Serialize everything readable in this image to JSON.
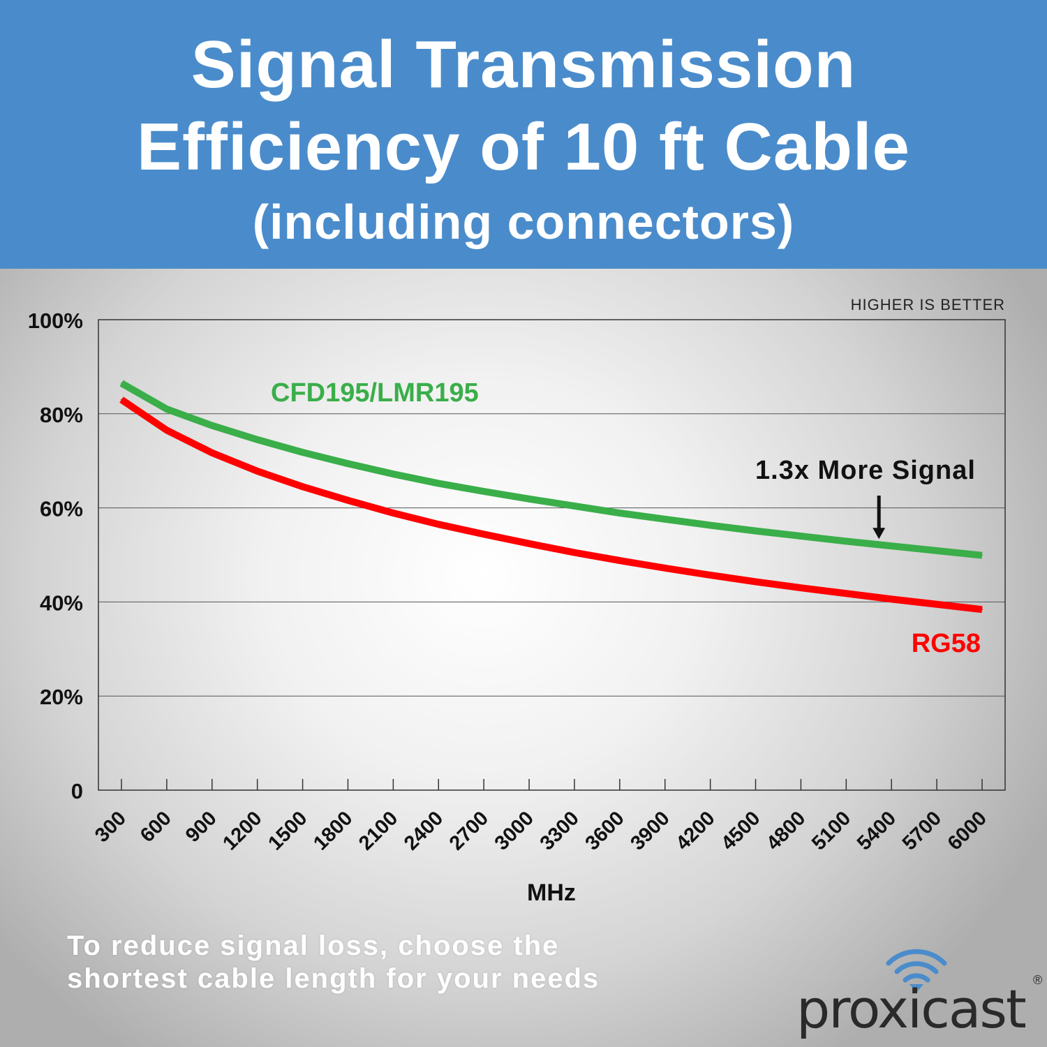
{
  "header": {
    "title_line1": "Signal Transmission",
    "title_line2": "Efficiency of 10 ft Cable",
    "title_line3": "(including connectors)"
  },
  "chart_data": {
    "type": "line",
    "title": "Signal Transmission Efficiency of 10 ft Cable (including connectors)",
    "corner_note": "HIGHER IS BETTER",
    "xlabel": "MHz",
    "ylabel": "",
    "x": [
      300,
      600,
      900,
      1200,
      1500,
      1800,
      2100,
      2400,
      2700,
      3000,
      3300,
      3600,
      3900,
      4200,
      4500,
      4800,
      5100,
      5400,
      5700,
      6000
    ],
    "y_ticks": [
      "0",
      "20%",
      "40%",
      "60%",
      "80%",
      "100%"
    ],
    "ylim": [
      0,
      100
    ],
    "grid": true,
    "series": [
      {
        "name": "CFD195/LMR195",
        "color": "#3aae49",
        "values": [
          86.5,
          81,
          77.5,
          74.5,
          71.8,
          69.4,
          67.2,
          65.2,
          63.5,
          61.9,
          60.4,
          58.9,
          57.6,
          56.3,
          55.1,
          54.0,
          52.9,
          51.9,
          50.9,
          49.9
        ]
      },
      {
        "name": "RG58",
        "color": "#ff0000",
        "values": [
          83,
          76.5,
          71.7,
          67.8,
          64.5,
          61.6,
          58.9,
          56.5,
          54.4,
          52.4,
          50.5,
          48.8,
          47.2,
          45.7,
          44.3,
          43.0,
          41.8,
          40.6,
          39.5,
          38.4
        ]
      }
    ],
    "annotation": {
      "text": "1.3x More Signal",
      "points_to_x": 5400
    }
  },
  "footer": {
    "note_line1": "To reduce signal loss, choose the",
    "note_line2": "shortest cable length for your needs"
  },
  "brand": {
    "name": "proxicast",
    "registered": "®",
    "accent_color": "#4a8ccb"
  }
}
